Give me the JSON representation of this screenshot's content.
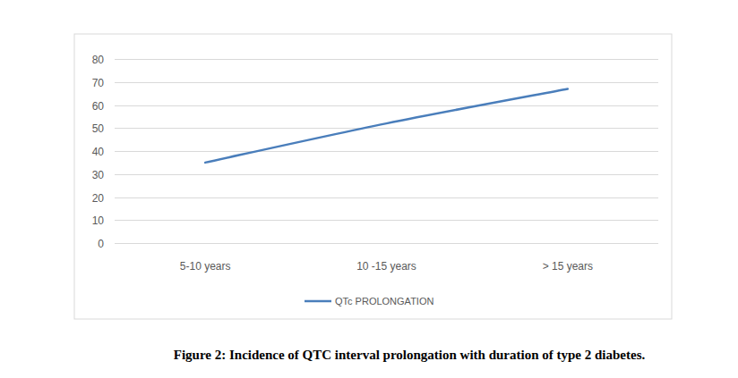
{
  "chart_data": {
    "type": "line",
    "title": "Figure 2: Incidence of QTC interval prolongation with duration of type 2 diabetes.",
    "categories": [
      "5-10 years",
      "10 -15 years",
      "> 15 years"
    ],
    "series": [
      {
        "name": "QTc PROLONGATION",
        "color": "#4a7ebb",
        "values": [
          35,
          52,
          67
        ]
      }
    ],
    "ylim": [
      0,
      80
    ],
    "yticks": [
      0,
      10,
      20,
      30,
      40,
      50,
      60,
      70,
      80
    ],
    "grid": true,
    "legend": "bottom"
  }
}
